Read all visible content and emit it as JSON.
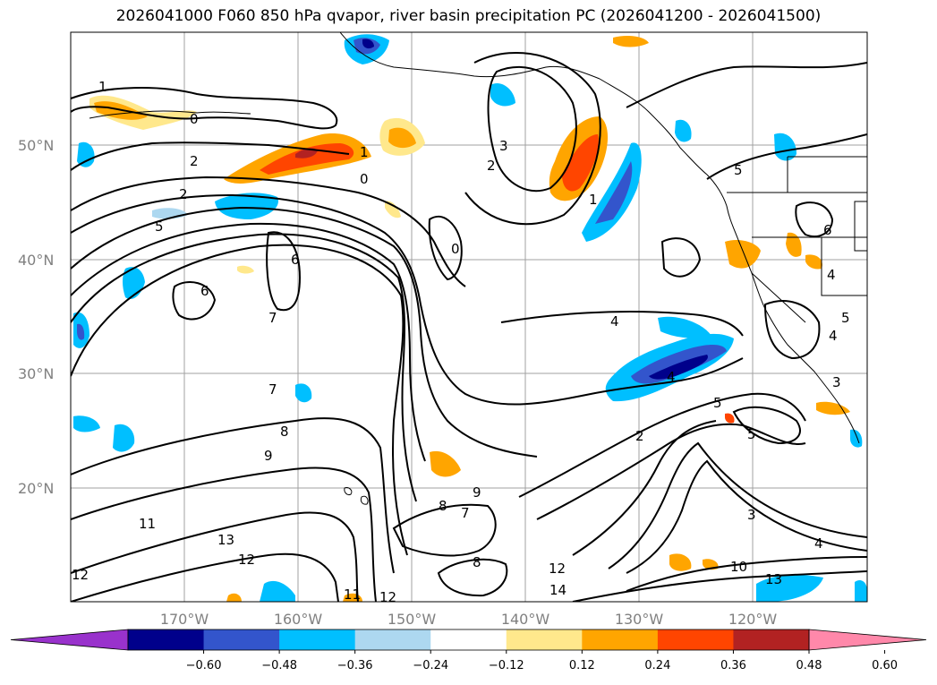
{
  "title": "2026041000 F060 850 hPa qvapor, river basin precipitation PC (2026041200 - 2026041500)",
  "map": {
    "lat_labels": [
      "50°N",
      "40°N",
      "30°N",
      "20°N"
    ],
    "lon_labels": [
      "170°W",
      "160°W",
      "150°W",
      "140°W",
      "130°W",
      "120°W"
    ],
    "gridline_color": "#a0a0a0",
    "coastline_color": "#000000",
    "contour_color": "#000000",
    "contour_labels": [
      {
        "text": "1"
      },
      {
        "text": "0"
      },
      {
        "text": "2"
      },
      {
        "text": "2"
      },
      {
        "text": "1"
      },
      {
        "text": "0"
      },
      {
        "text": "5"
      },
      {
        "text": "6"
      },
      {
        "text": "6"
      },
      {
        "text": "7"
      },
      {
        "text": "7"
      },
      {
        "text": "8"
      },
      {
        "text": "9"
      },
      {
        "text": "3"
      },
      {
        "text": "2"
      },
      {
        "text": "1"
      },
      {
        "text": "0"
      },
      {
        "text": "4"
      },
      {
        "text": "5"
      },
      {
        "text": "2"
      },
      {
        "text": "5"
      },
      {
        "text": "4"
      },
      {
        "text": "5"
      },
      {
        "text": "9"
      },
      {
        "text": "8"
      },
      {
        "text": "7"
      },
      {
        "text": "8"
      },
      {
        "text": "11"
      },
      {
        "text": "13"
      },
      {
        "text": "12"
      },
      {
        "text": "12"
      },
      {
        "text": "11"
      },
      {
        "text": "12"
      },
      {
        "text": "12"
      },
      {
        "text": "14"
      },
      {
        "text": "10"
      },
      {
        "text": "13"
      },
      {
        "text": "3"
      },
      {
        "text": "4"
      },
      {
        "text": "6"
      },
      {
        "text": "4"
      },
      {
        "text": "5"
      },
      {
        "text": "4"
      },
      {
        "text": "3"
      }
    ]
  },
  "colorbar": {
    "colors": [
      "#9932cc",
      "#00008b",
      "#3355cc",
      "#00bfff",
      "#add8f0",
      "#ffffff",
      "#ffe88c",
      "#ffa500",
      "#ff4500",
      "#b22222",
      "#ff88aa"
    ],
    "tick_labels": [
      "−0.60",
      "−0.48",
      "−0.36",
      "−0.24",
      "−0.12",
      "0.12",
      "0.24",
      "0.36",
      "0.48",
      "0.60"
    ]
  }
}
